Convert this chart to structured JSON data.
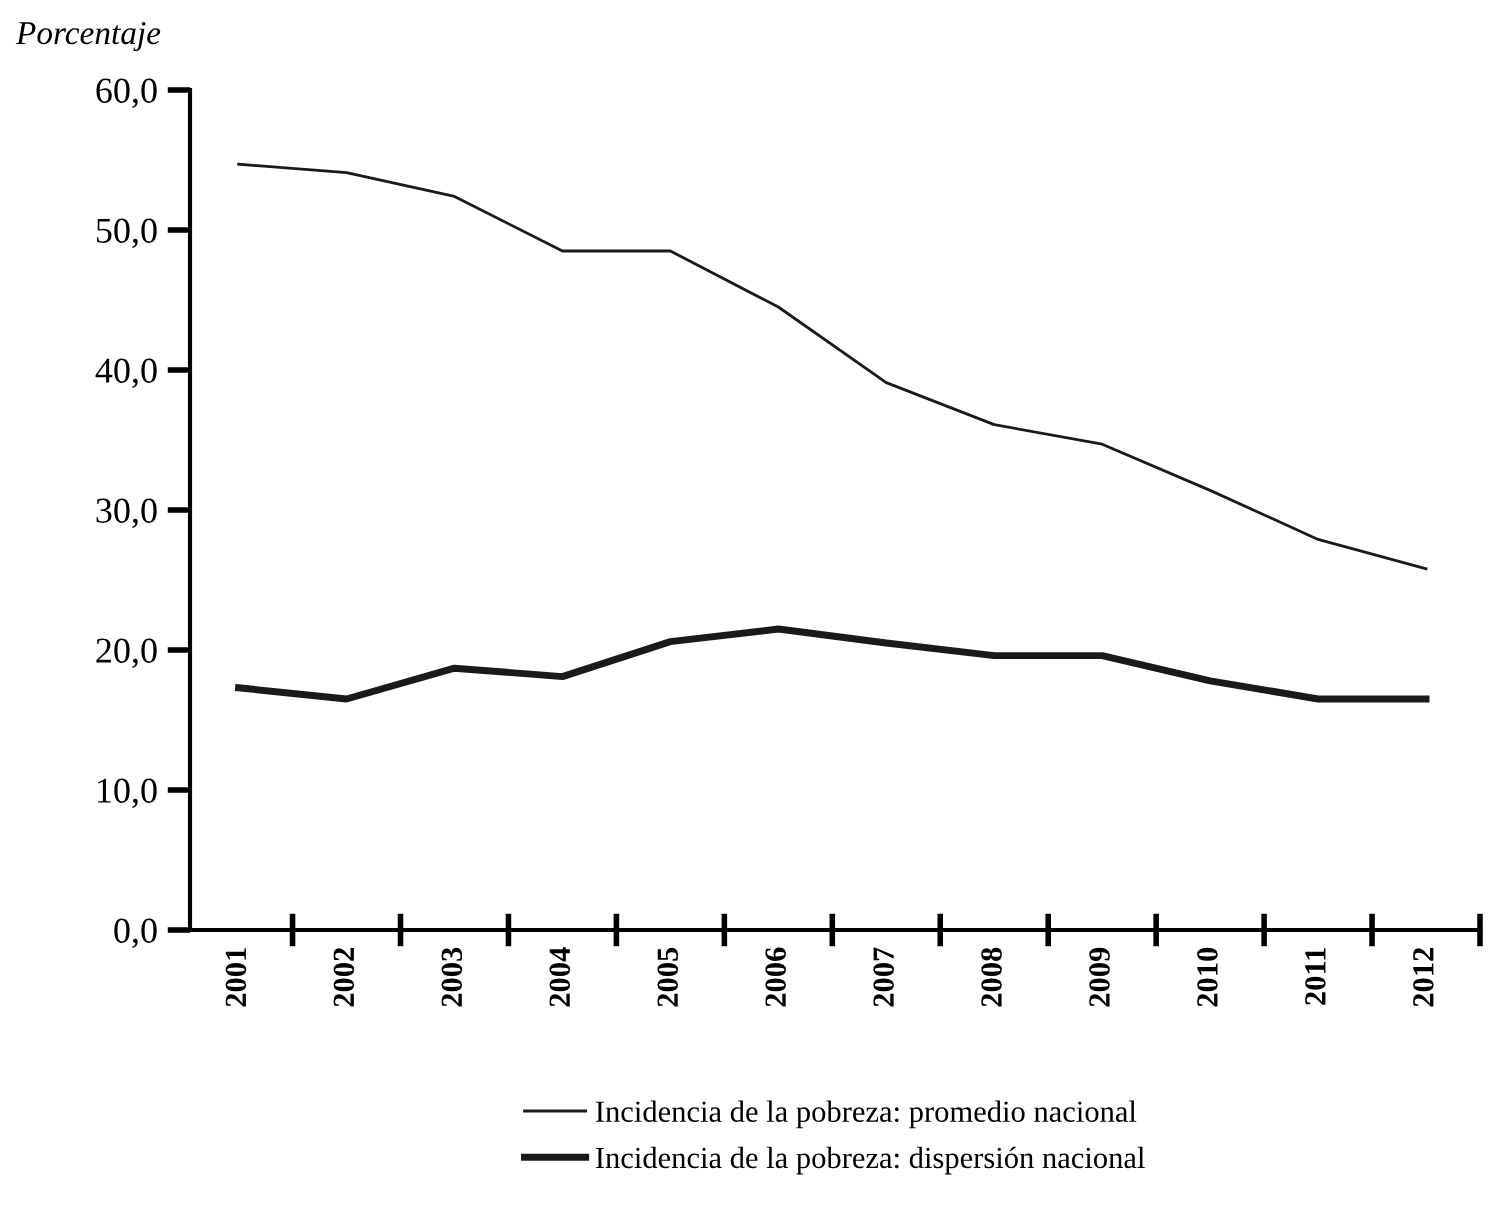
{
  "chart_data": {
    "type": "line",
    "ylabel": "Porcentaje",
    "categories": [
      "2001",
      "2002",
      "2003",
      "2004",
      "2005",
      "2006",
      "2007",
      "2008",
      "2009",
      "2010",
      "2011",
      "2012"
    ],
    "series": [
      {
        "name": "Incidencia de la pobreza: promedio nacional",
        "color": "#1a1a1a",
        "values": [
          54.7,
          54.1,
          52.4,
          48.5,
          48.5,
          44.5,
          39.1,
          36.1,
          34.7,
          31.4,
          27.9,
          25.8
        ]
      },
      {
        "name": "Incidencia de la pobreza: dispersión nacional",
        "color": "#1a1a1a",
        "values": [
          17.3,
          16.5,
          18.7,
          18.1,
          20.6,
          21.5,
          20.5,
          19.6,
          19.6,
          17.8,
          16.5,
          16.5
        ]
      }
    ],
    "ylim": [
      0,
      60
    ],
    "yticks": [
      {
        "value": 0,
        "label": "0,0"
      },
      {
        "value": 10,
        "label": "10,0"
      },
      {
        "value": 20,
        "label": "20,0"
      },
      {
        "value": 30,
        "label": "30,0"
      },
      {
        "value": 40,
        "label": "40,0"
      },
      {
        "value": 50,
        "label": "50,0"
      },
      {
        "value": 60,
        "label": "60,0"
      }
    ],
    "grid": false,
    "legend": "bottom",
    "marker": "none",
    "line_style": "solid"
  }
}
